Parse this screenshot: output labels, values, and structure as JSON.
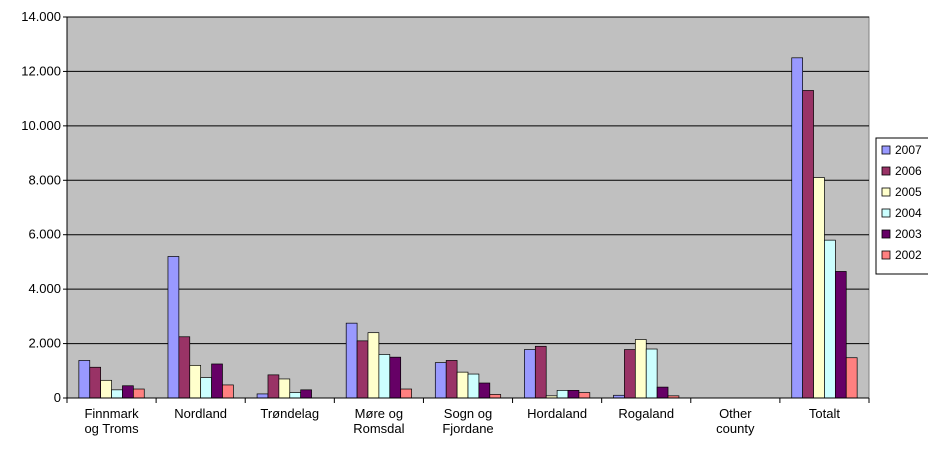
{
  "chart_data": {
    "type": "bar",
    "title": "",
    "xlabel": "",
    "ylabel": "",
    "ylim": [
      0,
      14000
    ],
    "yticks": [
      0,
      2000,
      4000,
      6000,
      8000,
      10000,
      12000,
      14000
    ],
    "ytick_labels": [
      "0",
      "2.000",
      "4.000",
      "6.000",
      "8.000",
      "10.000",
      "12.000",
      "14.000"
    ],
    "grid": true,
    "legend_position": "right",
    "categories": [
      [
        "Finnmark",
        "og Troms"
      ],
      [
        "Nordland"
      ],
      [
        "Trøndelag"
      ],
      [
        "Møre og",
        "Romsdal"
      ],
      [
        "Sogn og",
        "Fjordane"
      ],
      [
        "Hordaland"
      ],
      [
        "Rogaland"
      ],
      [
        "Other",
        "county"
      ],
      [
        "Totalt"
      ]
    ],
    "series": [
      {
        "name": "2007",
        "color": "#9999ff",
        "values": [
          1380,
          5200,
          150,
          2750,
          1300,
          1780,
          100,
          0,
          12500
        ]
      },
      {
        "name": "2006",
        "color": "#993366",
        "values": [
          1130,
          2250,
          850,
          2100,
          1380,
          1900,
          1780,
          0,
          11300
        ]
      },
      {
        "name": "2005",
        "color": "#ffffcc",
        "values": [
          650,
          1200,
          700,
          2400,
          950,
          80,
          2150,
          0,
          8100
        ]
      },
      {
        "name": "2004",
        "color": "#ccffff",
        "values": [
          300,
          750,
          200,
          1600,
          880,
          280,
          1800,
          0,
          5800
        ]
      },
      {
        "name": "2003",
        "color": "#660066",
        "values": [
          450,
          1250,
          300,
          1500,
          550,
          280,
          400,
          0,
          4650
        ]
      },
      {
        "name": "2002",
        "color": "#ff8080",
        "values": [
          330,
          480,
          0,
          330,
          130,
          200,
          80,
          0,
          1480
        ]
      }
    ]
  }
}
